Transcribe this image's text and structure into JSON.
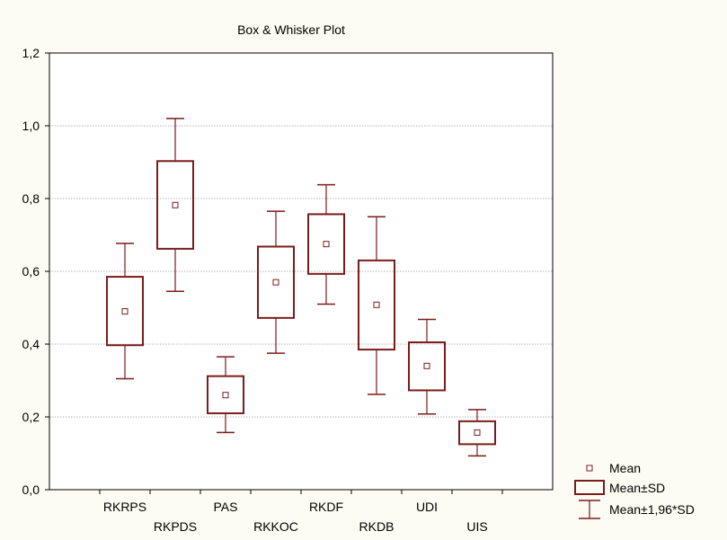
{
  "chart_data": {
    "type": "box",
    "title": "Box & Whisker Plot",
    "xlabel": "",
    "ylabel": "",
    "ylim": [
      0,
      1.2
    ],
    "yticks": [
      0.0,
      0.2,
      0.4,
      0.6,
      0.8,
      1.0,
      1.2
    ],
    "ytick_labels": [
      "0,0",
      "0,2",
      "0,4",
      "0,6",
      "0,8",
      "1,0",
      "1,2"
    ],
    "grid": true,
    "legend_position": "bottom-right",
    "legend": [
      "Mean",
      "Mean±SD",
      "Mean±1,96*SD"
    ],
    "colors": {
      "series": "#7b1c1c",
      "grid": "#a0a0a0",
      "background": "#fcfcf4",
      "plot_bg": "#ffffff"
    },
    "categories": [
      "RKRPS",
      "RKPDS",
      "PAS",
      "RKKOC",
      "RKDF",
      "RKDB",
      "UDI",
      "UIS"
    ],
    "series": [
      {
        "mean": 0.49,
        "sd_low": 0.397,
        "sd_high": 0.585,
        "ci_low": 0.305,
        "ci_high": 0.677
      },
      {
        "mean": 0.782,
        "sd_low": 0.662,
        "sd_high": 0.903,
        "ci_low": 0.545,
        "ci_high": 1.02
      },
      {
        "mean": 0.26,
        "sd_low": 0.21,
        "sd_high": 0.312,
        "ci_low": 0.157,
        "ci_high": 0.365
      },
      {
        "mean": 0.57,
        "sd_low": 0.472,
        "sd_high": 0.668,
        "ci_low": 0.375,
        "ci_high": 0.765
      },
      {
        "mean": 0.675,
        "sd_low": 0.593,
        "sd_high": 0.757,
        "ci_low": 0.51,
        "ci_high": 0.838
      },
      {
        "mean": 0.508,
        "sd_low": 0.385,
        "sd_high": 0.63,
        "ci_low": 0.262,
        "ci_high": 0.75
      },
      {
        "mean": 0.34,
        "sd_low": 0.273,
        "sd_high": 0.405,
        "ci_low": 0.208,
        "ci_high": 0.468
      },
      {
        "mean": 0.157,
        "sd_low": 0.125,
        "sd_high": 0.188,
        "ci_low": 0.093,
        "ci_high": 0.22
      }
    ]
  }
}
